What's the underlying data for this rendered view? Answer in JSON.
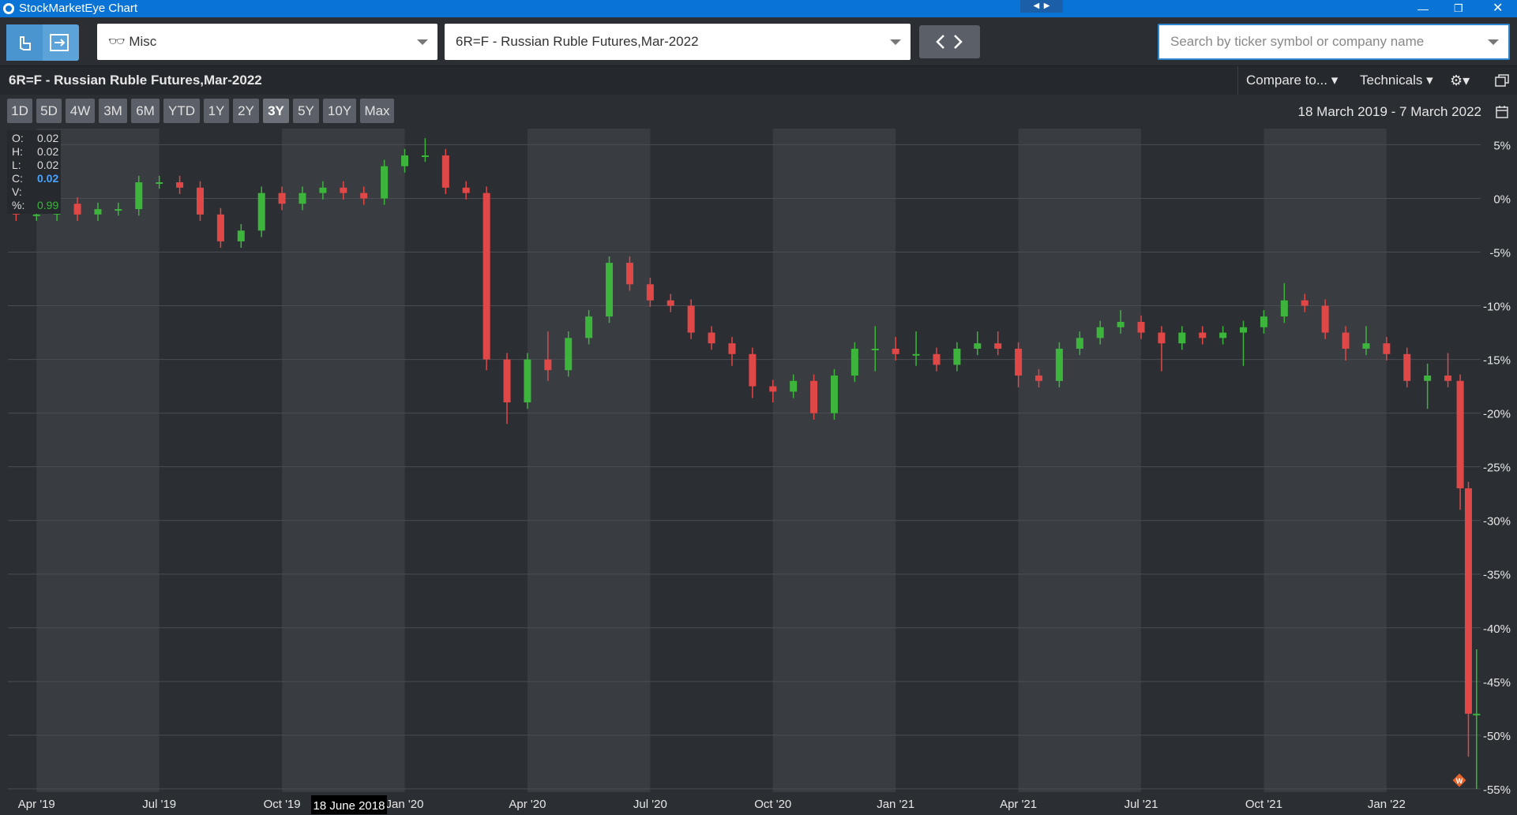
{
  "window": {
    "title": "StockMarketEye Chart"
  },
  "toolbar": {
    "portfolio": "Misc",
    "symbol": "6R=F - Russian Ruble Futures,Mar-2022",
    "search_placeholder": "Search by ticker symbol or company name"
  },
  "chart_header": {
    "title": "6R=F - Russian Ruble Futures,Mar-2022",
    "compare": "Compare to...",
    "technicals": "Technicals"
  },
  "periods": {
    "buttons": [
      "1D",
      "5D",
      "4W",
      "3M",
      "6M",
      "YTD",
      "1Y",
      "2Y",
      "3Y",
      "5Y",
      "10Y",
      "Max"
    ],
    "active_index": 8
  },
  "date_range": "18 March 2019 - 7 March 2022",
  "ohlc_readout": [
    {
      "label": "O:",
      "value": 0.02
    },
    {
      "label": "H:",
      "value": 0.02
    },
    {
      "label": "L:",
      "value": 0.02
    },
    {
      "label": "C:",
      "value": 0.02
    },
    {
      "label": "V:"
    },
    {
      "label": "%:",
      "value": 0.99
    }
  ],
  "chart_data": {
    "type": "candlestick",
    "x": [
      2.5,
      3.0,
      3.5,
      4.0,
      4.5,
      5.0,
      5.5,
      6.0,
      6.5,
      7.0,
      7.5,
      8.0,
      8.5,
      9.0,
      9.5,
      10.0,
      10.5,
      11.0,
      11.5,
      12.0,
      12.5,
      13.0,
      13.5,
      14.0,
      14.5,
      15.0,
      15.5,
      16.0,
      16.5,
      17.0,
      17.5,
      18.0,
      18.5,
      19.0,
      19.5,
      20.0,
      20.5,
      21.0,
      21.5,
      22.0,
      22.5,
      23.0,
      23.5,
      24.0,
      24.5,
      25.0,
      25.5,
      26.0,
      26.5,
      27.0,
      27.5,
      28.0,
      28.5,
      29.0,
      29.5,
      30.0,
      30.5,
      31.0,
      31.5,
      32.0,
      32.5,
      33.0,
      33.5,
      34.0,
      34.5,
      35.0,
      35.5,
      36.0,
      36.5,
      37.0,
      37.5,
      37.8,
      38.0,
      38.2
    ],
    "open": [
      -1,
      -1.5,
      -1.5,
      -0.5,
      -1.5,
      -1,
      -1,
      1.5,
      1.5,
      1,
      -1.5,
      -4,
      -3,
      0.5,
      -0.5,
      0.5,
      1,
      0.5,
      0,
      3,
      4,
      4,
      1,
      0.5,
      -15,
      -19,
      -15,
      -16,
      -13,
      -11,
      -6,
      -8,
      -9.5,
      -10,
      -12.5,
      -13.5,
      -14.5,
      -17.5,
      -18,
      -17,
      -20,
      -16.5,
      -14,
      -14,
      -14.5,
      -14.5,
      -15.5,
      -14,
      -13.5,
      -14,
      -16.5,
      -17,
      -14,
      -13,
      -12,
      -11.5,
      -12.5,
      -13.5,
      -12.5,
      -13,
      -12.5,
      -12,
      -11,
      -9.5,
      -10,
      -12.5,
      -14,
      -13.5,
      -14.5,
      -17,
      -16.5,
      -17,
      -27,
      -48
    ],
    "high": [
      -0.4,
      -0.9,
      0.1,
      0.1,
      -0.4,
      -0.4,
      2.1,
      2.1,
      2.1,
      1.6,
      -0.9,
      -2.4,
      1.1,
      1.1,
      1.1,
      1.6,
      1.6,
      1.1,
      3.6,
      4.6,
      5.6,
      4.6,
      1.6,
      1.1,
      -14.4,
      -14.4,
      -12.4,
      -12.4,
      -10.4,
      -5.4,
      -5.4,
      -7.4,
      -8.9,
      -9.4,
      -11.9,
      -12.9,
      -13.9,
      -16.9,
      -16.4,
      -16.4,
      -15.9,
      -13.4,
      -11.9,
      -12.9,
      -12.4,
      -13.9,
      -13.4,
      -12.4,
      -12.4,
      -13.4,
      -15.9,
      -13.4,
      -12.4,
      -11.4,
      -10.4,
      -10.9,
      -11.9,
      -11.9,
      -11.9,
      -11.9,
      -11.4,
      -10.4,
      -7.9,
      -8.9,
      -9.4,
      -11.9,
      -11.9,
      -12.9,
      -13.9,
      -15.4,
      -14.4,
      -16.4,
      -26.4,
      -42
    ],
    "low": [
      -2.1,
      -2.1,
      -2.1,
      -2.1,
      -2.1,
      -1.6,
      -1.6,
      0.9,
      0.4,
      -2.1,
      -4.6,
      -4.6,
      -3.6,
      -1.1,
      -1.1,
      -0.1,
      -0.1,
      -0.6,
      -0.6,
      2.4,
      3.4,
      0.4,
      -0.1,
      -16,
      -21,
      -19.6,
      -17,
      -16.6,
      -13.6,
      -11.6,
      -8.6,
      -10.1,
      -10.6,
      -13.1,
      -14.1,
      -15.6,
      -18.6,
      -19,
      -18.6,
      -20.6,
      -20.6,
      -17.1,
      -16.1,
      -15.1,
      -15.6,
      -16.1,
      -16.1,
      -14.6,
      -14.6,
      -17.6,
      -17.6,
      -17.6,
      -14.6,
      -13.6,
      -12.6,
      -13.1,
      -16.1,
      -14.1,
      -13.6,
      -13.6,
      -15.6,
      -12.6,
      -11.6,
      -10.6,
      -13.1,
      -15.1,
      -14.6,
      -15.1,
      -17.6,
      -19.6,
      -17.6,
      -29,
      -52,
      -55
    ],
    "close": [
      -1.5,
      -1.5,
      -0.5,
      -1.5,
      -1,
      -1,
      1.5,
      1.5,
      1,
      -1.5,
      -4,
      -3,
      0.5,
      -0.5,
      0.5,
      1,
      0.5,
      0,
      3,
      4,
      4,
      1,
      0.5,
      -15,
      -19,
      -15,
      -16,
      -13,
      -11,
      -6,
      -8,
      -9.5,
      -10,
      -12.5,
      -13.5,
      -14.5,
      -17.5,
      -18,
      -17,
      -20,
      -16.5,
      -14,
      -14,
      -14.5,
      -14.5,
      -15.5,
      -14,
      -13.5,
      -14,
      -16.5,
      -17,
      -14,
      -13,
      -12,
      -11.5,
      -12.5,
      -13.5,
      -12.5,
      -13,
      -12.5,
      -12,
      -11,
      -9.5,
      -10,
      -12.5,
      -14,
      -13.5,
      -14.5,
      -17,
      -16.5,
      -17,
      -27,
      -48,
      -48
    ],
    "up_color": "#3db53d",
    "down_color": "#e04848",
    "xlim": [
      2.3,
      38.3
    ],
    "xticks": [
      {
        "value": 3,
        "label": "Apr '19"
      },
      {
        "value": 6,
        "label": "Jul '19"
      },
      {
        "value": 9,
        "label": "Oct '19"
      },
      {
        "value": 12,
        "label": "Jan '20"
      },
      {
        "value": 15,
        "label": "Apr '20"
      },
      {
        "value": 18,
        "label": "Jul '20"
      },
      {
        "value": 21,
        "label": "Oct '20"
      },
      {
        "value": 24,
        "label": "Jan '21"
      },
      {
        "value": 27,
        "label": "Apr '21"
      },
      {
        "value": 30,
        "label": "Jul '21"
      },
      {
        "value": 33,
        "label": "Oct '21"
      },
      {
        "value": 36,
        "label": "Jan '22"
      }
    ],
    "ylim": [
      -55.3,
      6.5
    ],
    "yticks": [
      {
        "value": 5,
        "label": "5%"
      },
      {
        "value": 0,
        "label": "0%"
      },
      {
        "value": -5,
        "label": "-5%"
      },
      {
        "value": -10,
        "label": "-10%"
      },
      {
        "value": -15,
        "label": "-15%"
      },
      {
        "value": -20,
        "label": "-20%"
      },
      {
        "value": -25,
        "label": "-25%"
      },
      {
        "value": -30,
        "label": "-30%"
      },
      {
        "value": -35,
        "label": "-35%"
      },
      {
        "value": -40,
        "label": "-40%"
      },
      {
        "value": -45,
        "label": "-45%"
      },
      {
        "value": -50,
        "label": "-50%"
      },
      {
        "value": -55,
        "label": "-55%"
      }
    ],
    "grid": true,
    "crosshair_label": "18 June 2018",
    "marker_label": "W"
  }
}
